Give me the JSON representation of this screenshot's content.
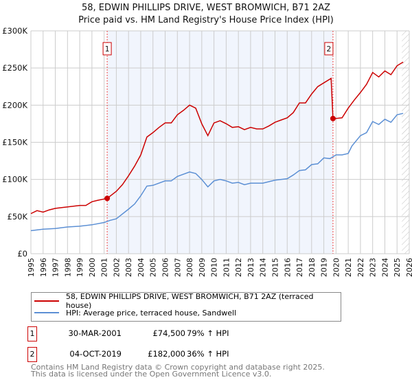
{
  "title_line1": "58, EDWIN PHILLIPS DRIVE, WEST BROMWICH, B71 2AZ",
  "title_line2": "Price paid vs. HM Land Registry's House Price Index (HPI)",
  "chart_data": {
    "type": "line",
    "title": "58, EDWIN PHILLIPS DRIVE, WEST BROMWICH, B71 2AZ — Price paid vs. HM Land Registry's House Price Index (HPI)",
    "xlim": [
      1995,
      2026
    ],
    "ylim": [
      0,
      300000
    ],
    "y_ticks": [
      {
        "v": 0,
        "label": "£0"
      },
      {
        "v": 50000,
        "label": "£50K"
      },
      {
        "v": 100000,
        "label": "£100K"
      },
      {
        "v": 150000,
        "label": "£150K"
      },
      {
        "v": 200000,
        "label": "£200K"
      },
      {
        "v": 250000,
        "label": "£250K"
      },
      {
        "v": 300000,
        "label": "£300K"
      }
    ],
    "x_ticks": [
      "1995",
      "1996",
      "1997",
      "1998",
      "1999",
      "2000",
      "2001",
      "2002",
      "2003",
      "2004",
      "2005",
      "2006",
      "2007",
      "2008",
      "2009",
      "2010",
      "2011",
      "2012",
      "2013",
      "2014",
      "2015",
      "2016",
      "2017",
      "2018",
      "2019",
      "2020",
      "2021",
      "2022",
      "2023",
      "2024",
      "2025",
      "2026"
    ],
    "grid": true,
    "shaded_range": [
      2001.25,
      2019.75
    ],
    "hatched_from": 2025.0,
    "series": [
      {
        "name": "58, EDWIN PHILLIPS DRIVE, WEST BROMWICH, B71 2AZ (terraced house)",
        "color": "#cc0000",
        "x": [
          1995,
          1995.5,
          1996,
          1996.5,
          1997,
          1998,
          1999,
          1999.5,
          2000,
          2000.5,
          2001.25,
          2002,
          2002.5,
          2003,
          2003.5,
          2004,
          2004.5,
          2005,
          2005.5,
          2006,
          2006.5,
          2007,
          2007.5,
          2008,
          2008.5,
          2009,
          2009.5,
          2010,
          2010.5,
          2011,
          2011.5,
          2012,
          2012.5,
          2013,
          2013.5,
          2014,
          2014.5,
          2015,
          2015.5,
          2016,
          2016.5,
          2017,
          2017.5,
          2018,
          2018.5,
          2019,
          2019.6,
          2019.75,
          2020,
          2020.5,
          2021,
          2021.5,
          2022,
          2022.5,
          2023,
          2023.5,
          2024,
          2024.5,
          2025,
          2025.5
        ],
        "y": [
          54000,
          58000,
          56000,
          59000,
          61000,
          63000,
          65000,
          65000,
          70000,
          72000,
          74500,
          84000,
          93000,
          105000,
          118000,
          133000,
          157000,
          163000,
          170000,
          176000,
          176000,
          187000,
          193000,
          200000,
          196000,
          175000,
          159000,
          176000,
          179000,
          175000,
          170000,
          171000,
          167000,
          170000,
          168000,
          168000,
          172000,
          177000,
          180000,
          183000,
          190000,
          203000,
          203000,
          215000,
          225000,
          230000,
          236000,
          182000,
          182000,
          183000,
          196000,
          207000,
          217000,
          228000,
          244000,
          238000,
          246000,
          241000,
          253000,
          258000
        ]
      },
      {
        "name": "HPI: Average price, terraced house, Sandwell",
        "color": "#5b8fd4",
        "x": [
          1995,
          1996,
          1997,
          1998,
          1999,
          2000,
          2001,
          2001.5,
          2002,
          2003,
          2003.5,
          2004,
          2004.5,
          2005,
          2006,
          2006.5,
          2007,
          2008,
          2008.5,
          2009,
          2009.5,
          2010,
          2010.5,
          2011,
          2011.5,
          2012,
          2012.5,
          2013,
          2013.5,
          2014,
          2015,
          2016,
          2016.5,
          2017,
          2017.5,
          2018,
          2018.5,
          2019,
          2019.5,
          2020,
          2020.5,
          2021,
          2021.3,
          2022,
          2022.5,
          2023,
          2023.5,
          2024,
          2024.5,
          2025,
          2025.5
        ],
        "y": [
          31000,
          33000,
          34000,
          36000,
          37000,
          39000,
          42000,
          45000,
          47000,
          60000,
          67000,
          78000,
          91000,
          92000,
          98000,
          98000,
          104000,
          110000,
          108000,
          100000,
          90000,
          98000,
          100000,
          98000,
          95000,
          96000,
          93000,
          95000,
          95000,
          95000,
          99000,
          101000,
          106000,
          112000,
          113000,
          120000,
          121000,
          129000,
          128000,
          133000,
          133000,
          135000,
          145000,
          159000,
          163000,
          178000,
          174000,
          181000,
          177000,
          187000,
          189000
        ]
      }
    ],
    "sales": [
      {
        "label": "1",
        "x": 2001.25,
        "y": 74500
      },
      {
        "label": "2",
        "x": 2019.75,
        "y": 182000
      }
    ]
  },
  "legend": {
    "red": "58, EDWIN PHILLIPS DRIVE, WEST BROMWICH, B71 2AZ (terraced house)",
    "blue": "HPI: Average price, terraced house, Sandwell"
  },
  "transactions": [
    {
      "num": "1",
      "date": "30-MAR-2001",
      "price": "£74,500",
      "hpi": "79% ↑ HPI"
    },
    {
      "num": "2",
      "date": "04-OCT-2019",
      "price": "£182,000",
      "hpi": "36% ↑ HPI"
    }
  ],
  "footer": {
    "line1": "Contains HM Land Registry data © Crown copyright and database right 2025.",
    "line2": "This data is licensed under the Open Government Licence v3.0."
  }
}
